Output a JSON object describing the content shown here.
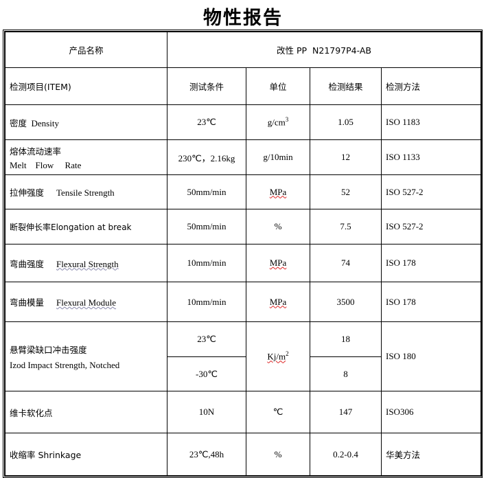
{
  "title": "物性报告",
  "product": {
    "label": "产品名称",
    "value": "改性 PP  N21797P4-AB"
  },
  "headers": {
    "item": "检测项目(ITEM)",
    "condition": "测试条件",
    "unit": "单位",
    "result": "检测结果",
    "method": "检测方法"
  },
  "rows": [
    {
      "cn": "密度",
      "en": "Density",
      "condition": "23℃",
      "unit": "g/cm",
      "unit_sup": "3",
      "result": "1.05",
      "method": "ISO 1183"
    },
    {
      "cn": "熔体流动速率",
      "en": "Melt    Flow     Rate",
      "condition": "230℃，2.16kg",
      "unit": "g/10min",
      "result": "12",
      "method": "ISO 1133"
    },
    {
      "cn": "拉伸强度",
      "en": "Tensile Strength",
      "condition": "50mm/min",
      "unit": "MPa",
      "result": "52",
      "method": "ISO 527-2"
    },
    {
      "cn": "断裂伸长率",
      "en": "Elongation at break",
      "condition": "50mm/min",
      "unit": "%",
      "result": "7.5",
      "method": "ISO 527-2"
    },
    {
      "cn": "弯曲强度",
      "en": "Flexural Strength",
      "condition": "10mm/min",
      "unit": "MPa",
      "result": "74",
      "method": "ISO 178"
    },
    {
      "cn": "弯曲模量",
      "en": "Flexural Module",
      "condition": "10mm/min",
      "unit": "MPa",
      "result": "3500",
      "method": "ISO 178"
    },
    {
      "cn": "悬臂梁缺口冲击强度",
      "en": "Izod Impact Strength, Notched",
      "condition": "23℃",
      "condition2": "-30℃",
      "unit": "Kj/m",
      "unit_sup": "2",
      "result": "18",
      "result2": "8",
      "method": "ISO 180"
    },
    {
      "cn": "维卡软化点",
      "condition": "10N",
      "unit": "℃",
      "result": "147",
      "method": "ISO306"
    },
    {
      "cn": "收缩率",
      "en": "Shrinkage",
      "condition": "23℃,48h",
      "unit": "%",
      "result": "0.2-0.4",
      "method": "华美方法"
    }
  ]
}
